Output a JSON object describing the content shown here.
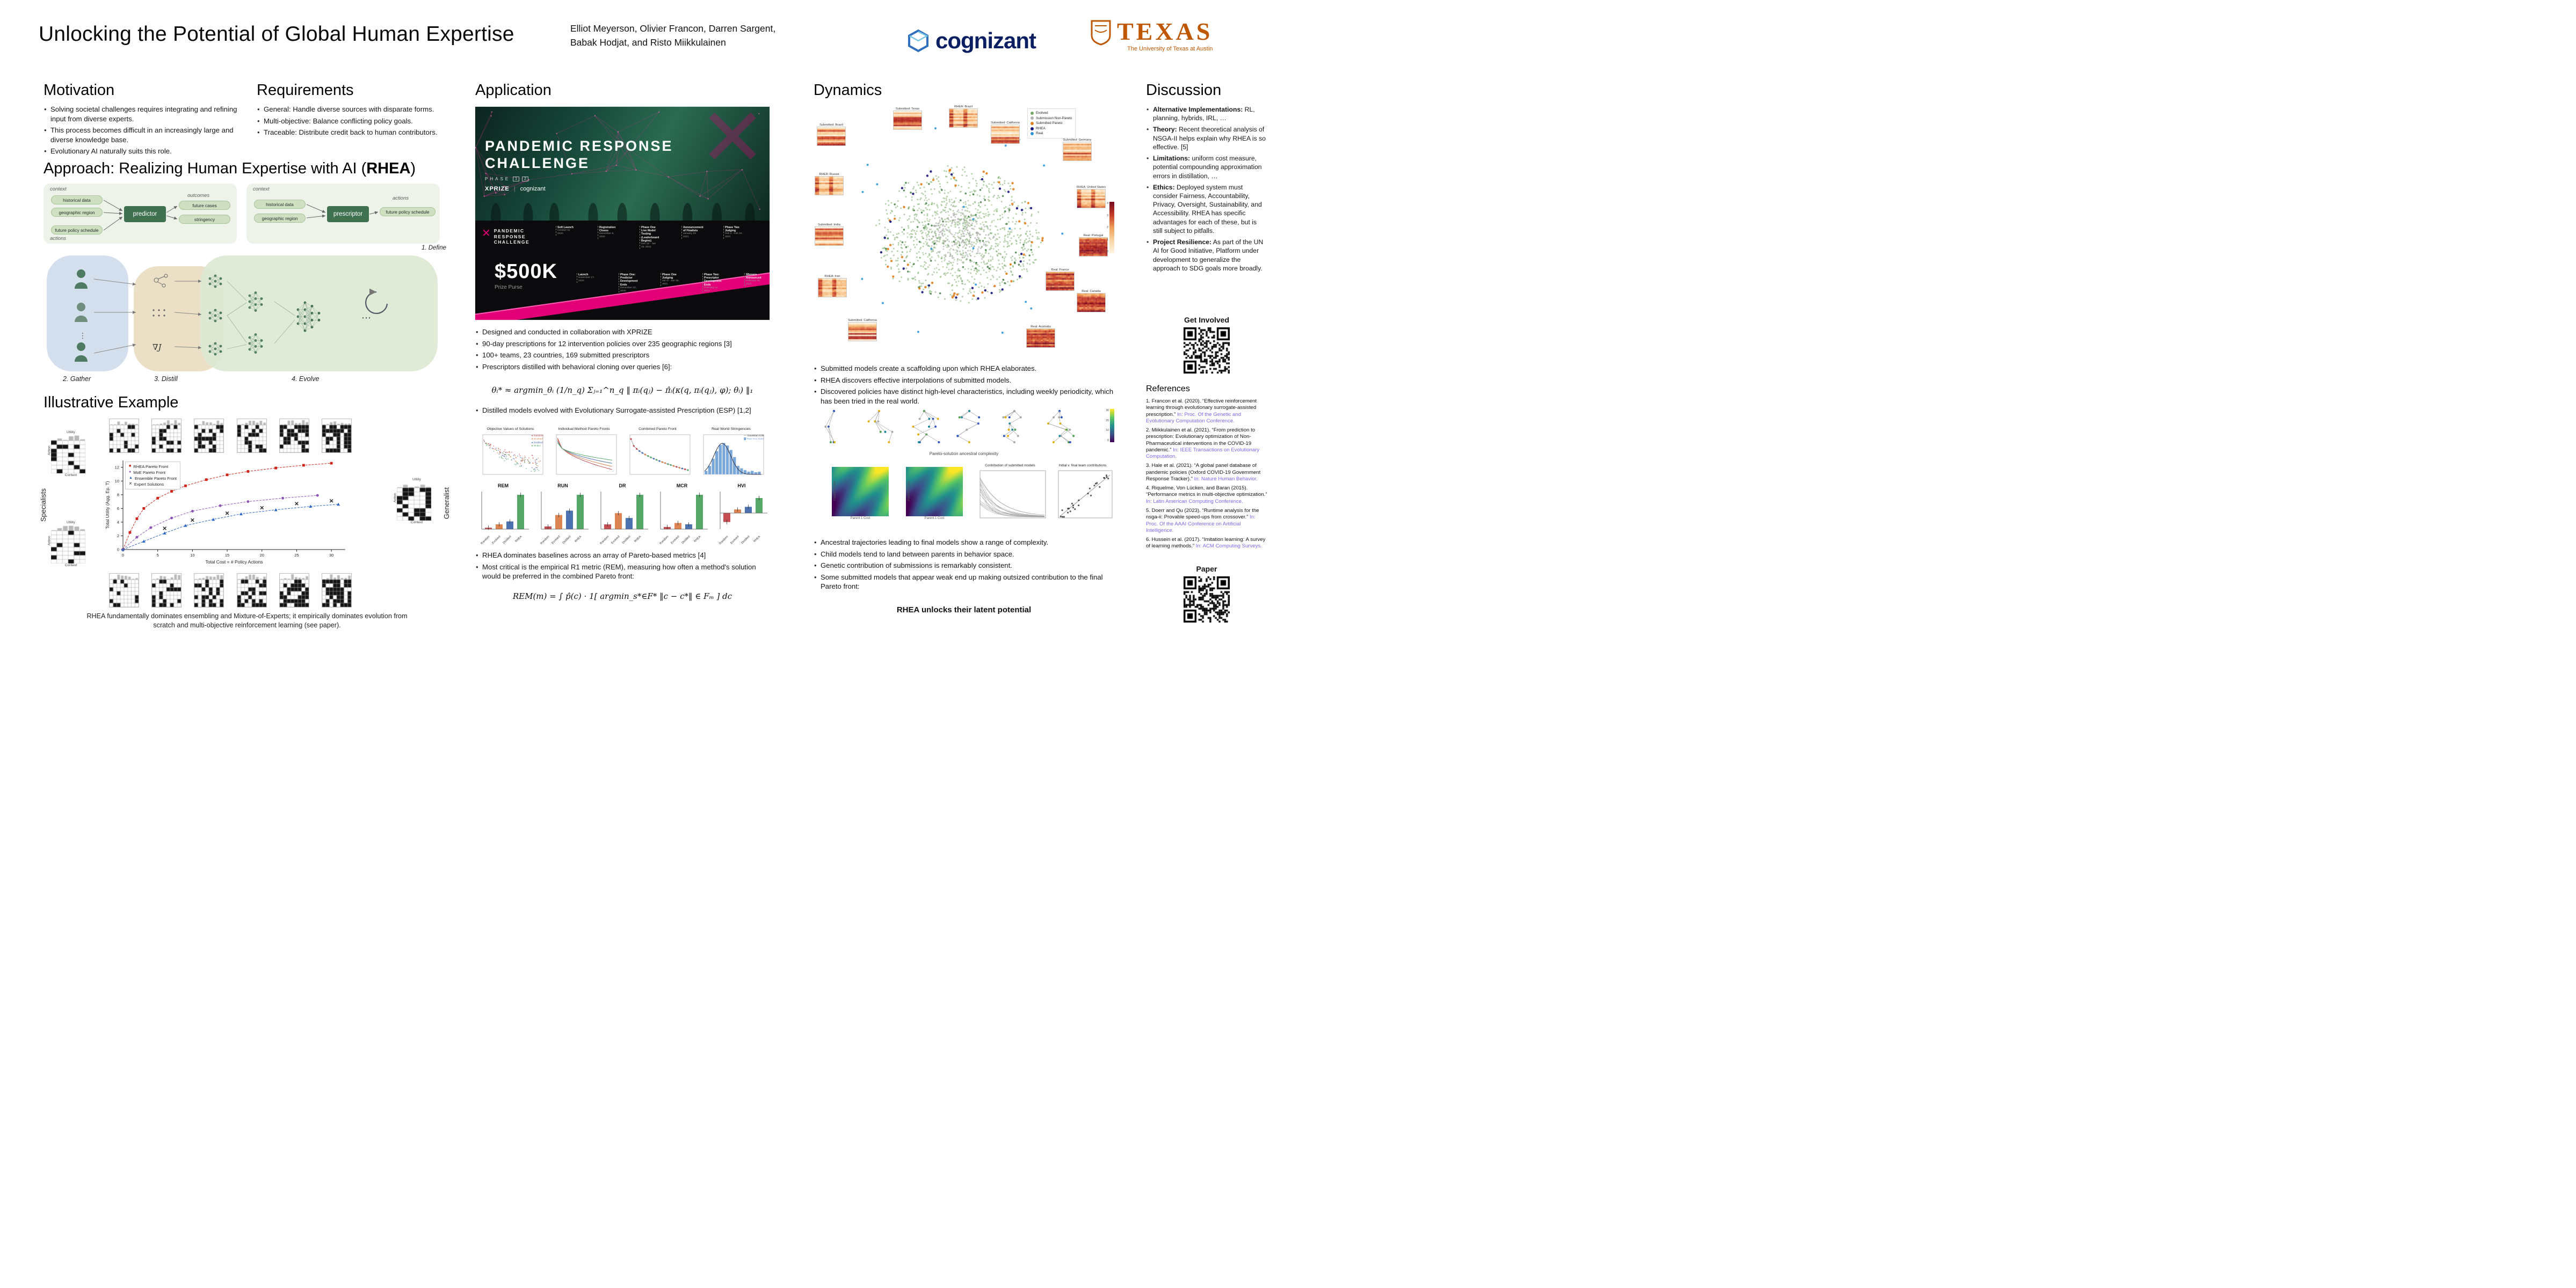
{
  "colors": {
    "magenta": "#e20177",
    "dark_green": "#3f7050",
    "light_green": "#cfe0c2",
    "burnt_orange": "#bf5700",
    "cognizant_navy": "#0a1f62",
    "venue_violet": "#7b68ee"
  },
  "header": {
    "title": "Unlocking the Potential of Global Human Expertise",
    "authors_line1": "Elliot Meyerson, Olivier Francon, Darren Sargent,",
    "authors_line2": "Babak Hodjat, and Risto Miikkulainen",
    "cognizant": "cognizant",
    "texas": "TEXAS",
    "texas_sub": "The University of Texas at Austin"
  },
  "motivation": {
    "heading": "Motivation",
    "bullets": [
      "Solving societal challenges requires integrating and refining input from diverse experts.",
      "This process becomes difficult in an increasingly large and diverse knowledge base.",
      "Evolutionary AI naturally suits this role."
    ]
  },
  "requirements": {
    "heading": "Requirements",
    "bullets": [
      "General: Handle diverse sources with disparate forms.",
      "Multi-objective: Balance conflicting policy goals.",
      "Traceable: Distribute credit back to human contributors."
    ]
  },
  "approach": {
    "heading_pre": "Approach: Realizing Human Expertise with AI (",
    "heading_bold": "RHEA",
    "heading_post": ")",
    "steps": [
      "1. Define",
      "2. Gather",
      "3. Distill",
      "4. Evolve"
    ],
    "grad": "∇J",
    "define": {
      "context_label": "context",
      "actions_label": "actions",
      "outcomes_label": "outcomes",
      "panel1": {
        "inputs": [
          "historical data",
          "geographic region"
        ],
        "action_input": "future policy schedule",
        "model": "predictor",
        "outputs": [
          "future cases",
          "stringency"
        ]
      },
      "panel2": {
        "inputs": [
          "historical data",
          "geographic region"
        ],
        "model": "prescriptor",
        "output": "future policy schedule"
      }
    }
  },
  "example": {
    "heading": "Illustrative Example",
    "specialists": "Specialists",
    "generalist": "Generalist",
    "mini": {
      "utility": "Utility",
      "action": "Action",
      "context": "Context"
    },
    "caption": "RHEA fundamentally dominates ensembling and Mixture-of-Experts; it empirically dominates evolution from scratch and multi-objective reinforcement learning (see paper)."
  },
  "application": {
    "heading": "Application",
    "banner": {
      "title_line1": "PANDEMIC RESPONSE",
      "title_line2": "CHALLENGE",
      "phase_label": "PHASE",
      "phase_nums": [
        "1",
        "2"
      ],
      "xprize": "XPRIZE",
      "cognizant": "cognizant",
      "brand_lines": [
        "PANDEMIC",
        "RESPONSE",
        "CHALLENGE"
      ],
      "prize": "$500K",
      "prize_sub": "Prize Purse",
      "milestones": [
        {
          "t": "Soft Launch",
          "d": "October 01 2020"
        },
        {
          "t": "Launch",
          "d": "November 17, 2020"
        },
        {
          "t": "Registration Closes",
          "d": "December 8, 2020"
        },
        {
          "t": "Phase One: Predictor Development Ends",
          "d": "December 22, 2020"
        },
        {
          "t": "Phase One Live Model Testing (Leaderboard Begins)",
          "d": "Dec 22 - Jan 15, 2021"
        },
        {
          "t": "Phase One Judging",
          "d": "Jan 8 - Jan 15, 2021"
        },
        {
          "t": "Announcement of Finalists",
          "d": "January 19 2021"
        },
        {
          "t": "Phase Two: Prescriptor Development Ends",
          "d": "February 11 2021"
        },
        {
          "t": "Phase Two Judging",
          "d": "Feb 4 - Feb 24, 2021"
        },
        {
          "t": "Winners Announced",
          "d": "February 26, 2021"
        }
      ]
    },
    "bullets": [
      "Designed and conducted in collaboration with XPRIZE",
      "90-day prescriptions for 12 intervention policies over 235 geographic regions [3]",
      "100+ teams, 23 countries, 169 submitted prescriptors",
      "Prescriptors distilled with behavioral cloning over queries [6]:"
    ],
    "formula_distill": "θᵢ* ≈ argmin_θᵢ (1/n_q) Σⱼ₌₁^n_q ‖ πᵢ(qⱼ) − π̂ᵢ(κ(q, πᵢ(qⱼ), φ); θᵢ) ‖₁",
    "bullet_esp": "Distilled models evolved with Evolutionary Surrogate-assisted Prescription (ESP) [1,2]",
    "bullets2": [
      "RHEA dominates baselines across an array of Pareto-based metrics [4]",
      "Most critical is the empirical R1 metric (REM), measuring how often a method's solution would be preferred in the combined Pareto front:"
    ],
    "formula_rem": "REM(m) = ∫ p̂(c) · 1[ argmin_s*∈F* ‖c − c*‖ ∈ Fₘ ] dc"
  },
  "dynamics": {
    "heading": "Dynamics",
    "legend": [
      {
        "label": "Evolved",
        "color": "#76a865"
      },
      {
        "label": "Submission Non-Pareto",
        "color": "#b0b0b0"
      },
      {
        "label": "Submitted Pareto",
        "color": "#e0821c"
      },
      {
        "label": "RHEA",
        "color": "#15157a"
      },
      {
        "label": "Real",
        "color": "#2593d6"
      }
    ],
    "insets": [
      "Submitted: Texas",
      "RHEA: Brazil",
      "Submitted: Brazil",
      "Submitted: California",
      "Submitted: Germany",
      "RHEA: Russia",
      "RHEA: United States",
      "Submitted: India",
      "Real: Portugal",
      "RHEA: Iran",
      "Real: France",
      "Real: Canada",
      "Submitted: California",
      "Real: Australia"
    ],
    "colorbar_ticks": [
      "4",
      "3",
      "2",
      "1",
      "0"
    ],
    "tree_ticks": [
      "30",
      "20",
      "10",
      "0"
    ],
    "bullets1": [
      "Submitted models create a scaffolding upon which RHEA elaborates.",
      "RHEA discovers effective interpolations of submitted models.",
      "Discovered policies have distinct high-level characteristics, including weekly periodicity, which has been tried in the real world."
    ],
    "tree_caption": "Pareto-solution ancestral complexity",
    "panels": {
      "heat_xlabel": "Parent 1 Cost",
      "heat_ylabel": "Parent 2 Cost",
      "curves_title": "Contribution of submitted models",
      "scatter_title": "Initial v. final team contributions"
    },
    "bullets2": [
      "Ancestral trajectories leading to final models show a range of complexity.",
      "Child models tend to land between parents in behavior space.",
      "Genetic contribution of submissions is remarkably consistent.",
      "Some submitted models that appear weak end up making outsized contribution to the final Pareto front:"
    ],
    "tagline": "RHEA unlocks their latent potential"
  },
  "discussion": {
    "heading": "Discussion",
    "items": [
      {
        "lead": "Alternative Implementations:",
        "text": " RL, planning, hybrids, IRL, …"
      },
      {
        "lead": "Theory:",
        "text": " Recent theoretical analysis of NSGA-II helps explain why RHEA is so effective. [5]"
      },
      {
        "lead": "Limitations:",
        "text": " uniform cost measure, potential compounding approximation errors in distillation, …"
      },
      {
        "lead": "Ethics:",
        "text": " Deployed system must consider Fairness, Accountability, Privacy, Oversight, Sustainability, and Accessibility. RHEA has specific advantages for each of these, but is still subject to pitfalls."
      },
      {
        "lead": "Project Resilience:",
        "text": " As part of the UN AI for Good Initiative, Platform under development to generalize the approach to SDG goals more broadly."
      }
    ],
    "get_involved": "Get Involved",
    "references_heading": "References",
    "references": [
      {
        "main": "1. Francon et al. (2020). “Effective reinforcement learning through evolutionary surrogate-assisted prescription.”",
        "venue": " In: Proc. Of the Genetic and Evolutionary Computation Conference."
      },
      {
        "main": "2. Miikkulainen et al. (2021). “From prediction to prescription: Evolutionary optimization of Non-Pharmaceutical interventions in the COVID-19 pandemic.”",
        "venue": " In: IEEE Transactions on Evolutionary Computation."
      },
      {
        "main": "3. Hale et al. (2021). “A global panel database of pandemic policies (Oxford COVID-19 Government Response Tracker).”",
        "venue": " In: Nature Human Behavior."
      },
      {
        "main": "4. Riquelme, Von Lücken, and Baran (2015). “Performance metrics in multi-objective optimization.”",
        "venue": " In: Latin American Computing Conference."
      },
      {
        "main": "5. Doerr and Qu (2023). “Runtime analysis for the nsga-ii: Provable speed-ups from crossover.”",
        "venue": " In: Proc. Of the AAAI Conference on Artificial Intelligence."
      },
      {
        "main": "6. Hussein et al. (2017). “Imitation learning: A survey of learning methods.”",
        "venue": " In: ACM Computing Surveys."
      }
    ],
    "paper_label": "Paper"
  },
  "chart_data": [
    {
      "id": "illustrative",
      "type": "scatter",
      "title": "Illustrative Example",
      "xlabel": "Total Cost = # Policy Actions",
      "ylabel": "Total Utility (Agg. Ep. T)",
      "xlim": [
        0,
        32
      ],
      "ylim": [
        0,
        13
      ],
      "xticks": [
        0,
        5,
        10,
        15,
        20,
        25,
        30
      ],
      "yticks": [
        0,
        2,
        4,
        6,
        8,
        10,
        12
      ],
      "series": [
        {
          "name": "RHEA Pareto Front",
          "color": "#cf2318",
          "marker": "square",
          "points": [
            [
              0,
              0
            ],
            [
              1,
              2.5
            ],
            [
              2,
              4.5
            ],
            [
              3,
              6
            ],
            [
              5,
              7.5
            ],
            [
              7,
              8.5
            ],
            [
              9,
              9.3
            ],
            [
              12,
              10.2
            ],
            [
              15,
              10.9
            ],
            [
              18,
              11.4
            ],
            [
              22,
              11.9
            ],
            [
              26,
              12.3
            ],
            [
              30,
              12.6
            ]
          ]
        },
        {
          "name": "MoE Pareto Front",
          "color": "#8d55b8",
          "marker": "circle",
          "points": [
            [
              0,
              0
            ],
            [
              2,
              1.8
            ],
            [
              4,
              3.2
            ],
            [
              7,
              4.6
            ],
            [
              10,
              5.6
            ],
            [
              14,
              6.4
            ],
            [
              18,
              7.0
            ],
            [
              23,
              7.5
            ],
            [
              28,
              7.9
            ]
          ]
        },
        {
          "name": "Ensemble Pareto Front",
          "color": "#2b66c2",
          "marker": "triangle",
          "points": [
            [
              0,
              0
            ],
            [
              3,
              1.2
            ],
            [
              6,
              2.4
            ],
            [
              9,
              3.5
            ],
            [
              13,
              4.4
            ],
            [
              17,
              5.2
            ],
            [
              22,
              5.8
            ],
            [
              27,
              6.3
            ],
            [
              31,
              6.6
            ]
          ]
        },
        {
          "name": "Expert Solutions",
          "color": "#222222",
          "marker": "x",
          "points": [
            [
              6,
              3.1
            ],
            [
              10,
              4.3
            ],
            [
              15,
              5.3
            ],
            [
              20,
              6.1
            ],
            [
              25,
              6.7
            ],
            [
              30,
              7.1
            ]
          ]
        }
      ]
    },
    {
      "id": "app_panels",
      "type": "scatter",
      "panel_titles": [
        "Objective Values of Solutions",
        "Individual Method Pareto Fronts",
        "Combined Pareto Front",
        "Real World Stringencies"
      ],
      "methods": [
        "Random",
        "Evolved",
        "Distilled",
        "RHEA"
      ],
      "hist_legend": [
        "Gaussian KDE",
        "Raw Geo Data"
      ]
    },
    {
      "id": "metrics",
      "type": "bar",
      "methods": [
        "Random",
        "Evolved",
        "Distilled",
        "RHEA"
      ],
      "colors": [
        "#c44e52",
        "#dd8452",
        "#4c72b0",
        "#55a868"
      ],
      "panels": [
        {
          "title": "REM",
          "values": [
            0.03,
            0.1,
            0.16,
            0.71
          ]
        },
        {
          "title": "RUN",
          "values": [
            0.08,
            0.42,
            0.55,
            1.02
          ]
        },
        {
          "title": "DR",
          "values": [
            0.12,
            0.4,
            0.28,
            0.86
          ]
        },
        {
          "title": "MCR",
          "values": [
            0.05,
            0.14,
            0.11,
            0.78
          ]
        },
        {
          "title": "HVI",
          "values": [
            -0.55,
            0.22,
            0.38,
            0.92
          ]
        }
      ]
    }
  ]
}
